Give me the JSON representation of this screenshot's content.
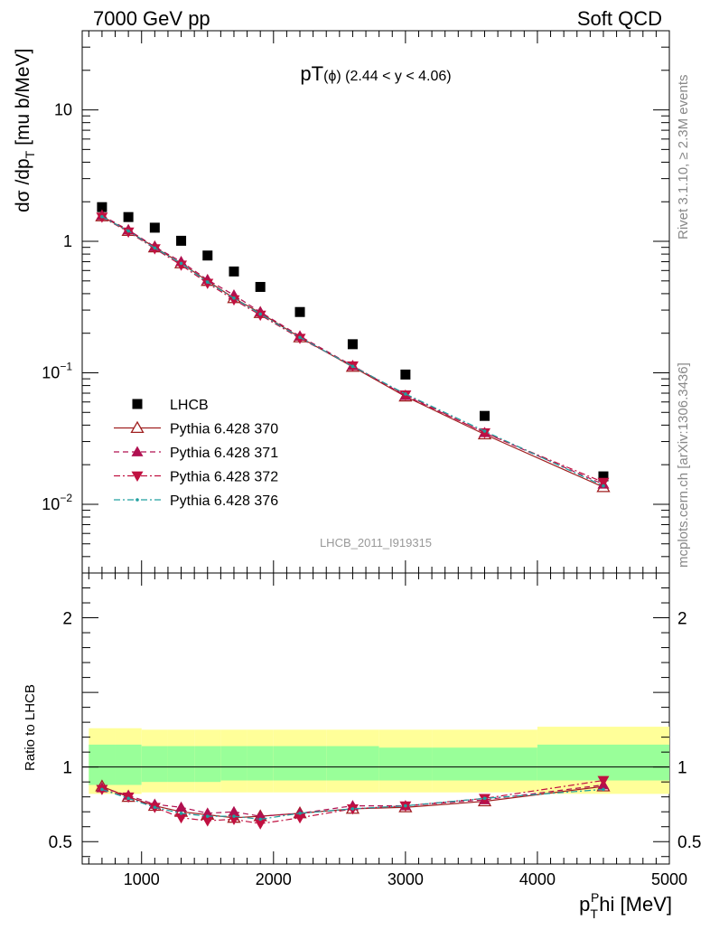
{
  "header": {
    "left": "7000 GeV pp",
    "right": "Soft QCD"
  },
  "side_labels": {
    "rivet": "Rivet 3.1.10, ≥ 2.3M events",
    "mcplots": "mcplots.cern.ch [arXiv:1306.3436]"
  },
  "watermark": "LHCB_2011_I919315",
  "chart_data": [
    {
      "type": "scatter",
      "panel": "main",
      "title": "pT(ϕ) (2.44 < y < 4.06)",
      "ylabel": "dσ /dp_T [mu b/MeV]",
      "yscale": "log",
      "ylim": [
        0.003,
        40
      ],
      "xlim": [
        550,
        5000
      ],
      "grid": false,
      "legend_position": "bottom-left",
      "y_tick_labels": [
        "10^{-2}",
        "10^{-1}",
        "1",
        "10"
      ],
      "x": [
        700,
        900,
        1100,
        1300,
        1500,
        1700,
        1900,
        2200,
        2600,
        3000,
        3600,
        4500
      ],
      "series": [
        {
          "name": "LHCB",
          "style": "square-filled",
          "color": "#000000",
          "values": [
            1.82,
            1.53,
            1.27,
            1.01,
            0.78,
            0.59,
            0.45,
            0.29,
            0.165,
            0.097,
            0.047,
            0.0163
          ]
        },
        {
          "name": "Pythia 6.428 370",
          "style": "solid-open-triangle",
          "color": "#a02020",
          "values": [
            1.55,
            1.2,
            0.9,
            0.68,
            0.5,
            0.37,
            0.285,
            0.186,
            0.111,
            0.066,
            0.034,
            0.0135
          ]
        },
        {
          "name": "Pythia 6.428 371",
          "style": "dashed-filled-triangle",
          "color": "#b01050",
          "values": [
            1.57,
            1.22,
            0.91,
            0.7,
            0.51,
            0.39,
            0.29,
            0.19,
            0.113,
            0.067,
            0.035,
            0.0142
          ]
        },
        {
          "name": "Pythia 6.428 372",
          "style": "dashdot-filled-downtriangle",
          "color": "#c01040",
          "values": [
            1.53,
            1.18,
            0.88,
            0.66,
            0.48,
            0.36,
            0.275,
            0.183,
            0.113,
            0.068,
            0.035,
            0.0147
          ]
        },
        {
          "name": "Pythia 6.428 376",
          "style": "dashdot-teal",
          "color": "#20a0a0",
          "values": [
            1.54,
            1.2,
            0.89,
            0.68,
            0.49,
            0.37,
            0.28,
            0.186,
            0.112,
            0.069,
            0.036,
            0.0138
          ]
        }
      ]
    },
    {
      "type": "line",
      "panel": "ratio",
      "xlabel": "p_T^Phi [MeV]",
      "ylabel": "Ratio to LHCB",
      "ylim": [
        0.35,
        2.3
      ],
      "xlim": [
        550,
        5000
      ],
      "x_tick_labels": [
        "1000",
        "2000",
        "3000",
        "4000",
        "5000"
      ],
      "y_tick_labels": [
        "0.5",
        "1",
        "2"
      ],
      "x": [
        700,
        900,
        1100,
        1300,
        1500,
        1700,
        1900,
        2200,
        2600,
        3000,
        3600,
        4500
      ],
      "band_colors": {
        "inner": "#99ff99",
        "outer": "#ffff99"
      },
      "band_edges": [
        600,
        800,
        1000,
        1200,
        1400,
        1600,
        1800,
        2000,
        2400,
        2800,
        3200,
        4000,
        5000
      ],
      "band_inner": [
        [
          0.88,
          1.15
        ],
        [
          0.88,
          1.15
        ],
        [
          0.9,
          1.14
        ],
        [
          0.9,
          1.14
        ],
        [
          0.9,
          1.14
        ],
        [
          0.91,
          1.14
        ],
        [
          0.91,
          1.14
        ],
        [
          0.91,
          1.14
        ],
        [
          0.91,
          1.14
        ],
        [
          0.91,
          1.13
        ],
        [
          0.91,
          1.13
        ],
        [
          0.91,
          1.15
        ]
      ],
      "band_outer": [
        [
          0.82,
          1.26
        ],
        [
          0.82,
          1.26
        ],
        [
          0.83,
          1.25
        ],
        [
          0.83,
          1.25
        ],
        [
          0.83,
          1.25
        ],
        [
          0.83,
          1.25
        ],
        [
          0.83,
          1.25
        ],
        [
          0.83,
          1.25
        ],
        [
          0.83,
          1.25
        ],
        [
          0.83,
          1.25
        ],
        [
          0.83,
          1.25
        ],
        [
          0.82,
          1.27
        ]
      ],
      "series": [
        {
          "name": "Pythia 6.428 370",
          "style": "solid-open-triangle",
          "color": "#a02020",
          "values": [
            0.87,
            0.8,
            0.74,
            0.7,
            0.68,
            0.66,
            0.67,
            0.69,
            0.72,
            0.73,
            0.77,
            0.87
          ]
        },
        {
          "name": "Pythia 6.428 371",
          "style": "dashed-filled-triangle",
          "color": "#b01050",
          "values": [
            0.86,
            0.81,
            0.75,
            0.73,
            0.69,
            0.7,
            0.67,
            0.69,
            0.74,
            0.74,
            0.78,
            0.88
          ]
        },
        {
          "name": "Pythia 6.428 372",
          "style": "dashdot-filled-downtriangle",
          "color": "#c01040",
          "values": [
            0.85,
            0.8,
            0.73,
            0.66,
            0.64,
            0.65,
            0.62,
            0.66,
            0.72,
            0.74,
            0.79,
            0.91
          ]
        },
        {
          "name": "Pythia 6.428 376",
          "style": "dashdot-teal",
          "color": "#20a0a0",
          "values": [
            0.85,
            0.79,
            0.73,
            0.69,
            0.67,
            0.67,
            0.65,
            0.69,
            0.72,
            0.74,
            0.79,
            0.85
          ]
        }
      ]
    }
  ]
}
